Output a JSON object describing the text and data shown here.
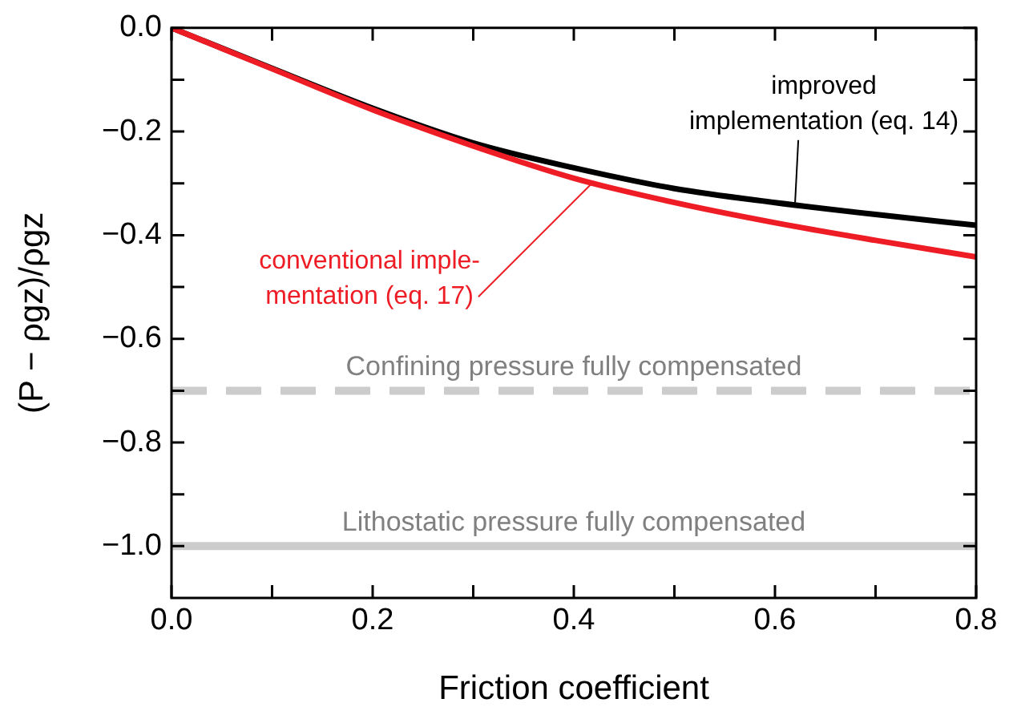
{
  "chart_data": {
    "type": "line",
    "xlabel": "Friction coefficient",
    "ylabel": "(P − ρgz)/ρgz",
    "x": [
      0,
      0.1,
      0.2,
      0.3,
      0.4,
      0.5,
      0.6,
      0.7,
      0.8
    ],
    "series": [
      {
        "color": "#ee1c25",
        "values": [
          0,
          -0.079,
          -0.158,
          -0.228,
          -0.29,
          -0.337,
          -0.376,
          -0.41,
          -0.442
        ]
      },
      {
        "color": "#000000",
        "values": [
          0,
          -0.078,
          -0.155,
          -0.222,
          -0.27,
          -0.31,
          -0.337,
          -0.36,
          -0.381
        ]
      }
    ],
    "xlim": [
      0,
      0.8
    ],
    "ylim": [
      -1.1,
      0
    ],
    "xticks": [
      {
        "value": 0,
        "label": "0.0"
      },
      {
        "value": 0.1,
        "label": null
      },
      {
        "value": 0.2,
        "label": "0.2"
      },
      {
        "value": 0.3,
        "label": null
      },
      {
        "value": 0.4,
        "label": "0.4"
      },
      {
        "value": 0.5,
        "label": null
      },
      {
        "value": 0.6,
        "label": "0.6"
      },
      {
        "value": 0.7,
        "label": null
      },
      {
        "value": 0.8,
        "label": "0.8"
      }
    ],
    "yticks": [
      {
        "value": 0,
        "label": "0.0"
      },
      {
        "value": -0.1,
        "label": null
      },
      {
        "value": -0.2,
        "label": "−0.2"
      },
      {
        "value": -0.3,
        "label": null
      },
      {
        "value": -0.4,
        "label": "−0.4"
      },
      {
        "value": -0.5,
        "label": null
      },
      {
        "value": -0.6,
        "label": "−0.6"
      },
      {
        "value": -0.7,
        "label": null
      },
      {
        "value": -0.8,
        "label": "−0.8"
      },
      {
        "value": -0.9,
        "label": null
      },
      {
        "value": -1.0,
        "label": "−1.0"
      }
    ],
    "ref_lines": [
      {
        "axis": "y",
        "value": -0.7,
        "label": "Confining pressure fully compensated",
        "color": "#cccccc",
        "line_style": "dashed"
      },
      {
        "axis": "y",
        "value": -1.0,
        "label": "Lithostatic pressure fully compensated",
        "color": "#cccccc",
        "line_style": "solid"
      }
    ],
    "annotations": [
      {
        "text": "improved\nimplementation (eq. 14)",
        "x": 0.62,
        "y": -0.337
      },
      {
        "text": "conventional imple-\nmentation (eq. 17)",
        "x": 0.42,
        "y": -0.296
      }
    ],
    "legend": false,
    "marker": "none",
    "line_style": "solid"
  }
}
